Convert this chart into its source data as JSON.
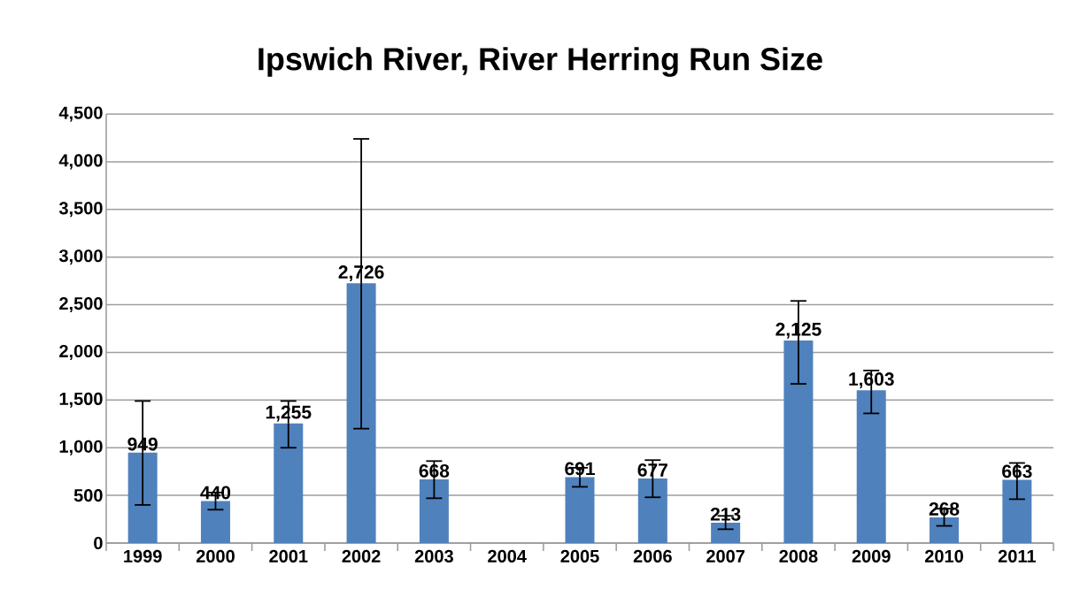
{
  "chart_data": {
    "type": "bar",
    "title": "Ipswich River, River Herring Run Size",
    "categories": [
      "1999",
      "2000",
      "2001",
      "2002",
      "2003",
      "2004",
      "2005",
      "2006",
      "2007",
      "2008",
      "2009",
      "2010",
      "2011"
    ],
    "values": [
      949,
      440,
      1255,
      2726,
      668,
      null,
      691,
      677,
      213,
      2125,
      1603,
      268,
      663
    ],
    "value_labels": [
      "949",
      "440",
      "1,255",
      "2,726",
      "668",
      null,
      "691",
      "677",
      "213",
      "2,125",
      "1,603",
      "268",
      "663"
    ],
    "errors": [
      [
        400,
        1490
      ],
      [
        350,
        530
      ],
      [
        1000,
        1490
      ],
      [
        1200,
        4240
      ],
      [
        470,
        860
      ],
      null,
      [
        590,
        790
      ],
      [
        480,
        870
      ],
      [
        145,
        285
      ],
      [
        1670,
        2540
      ],
      [
        1360,
        1810
      ],
      [
        180,
        360
      ],
      [
        460,
        840
      ]
    ],
    "color": "#4f81bd",
    "ylim": [
      0,
      4500
    ],
    "yticks": [
      0,
      500,
      {
        "value": 1000,
        "label": "1,000"
      },
      {
        "value": 1500,
        "label": "1,500"
      },
      {
        "value": 2000,
        "label": "2,000"
      },
      {
        "value": 2500,
        "label": "2,500"
      },
      {
        "value": 3000,
        "label": "3,000"
      },
      {
        "value": 3500,
        "label": "3,500"
      },
      {
        "value": 4000,
        "label": "4,000"
      },
      {
        "value": 4500,
        "label": "4,500"
      }
    ],
    "grid": "y"
  }
}
